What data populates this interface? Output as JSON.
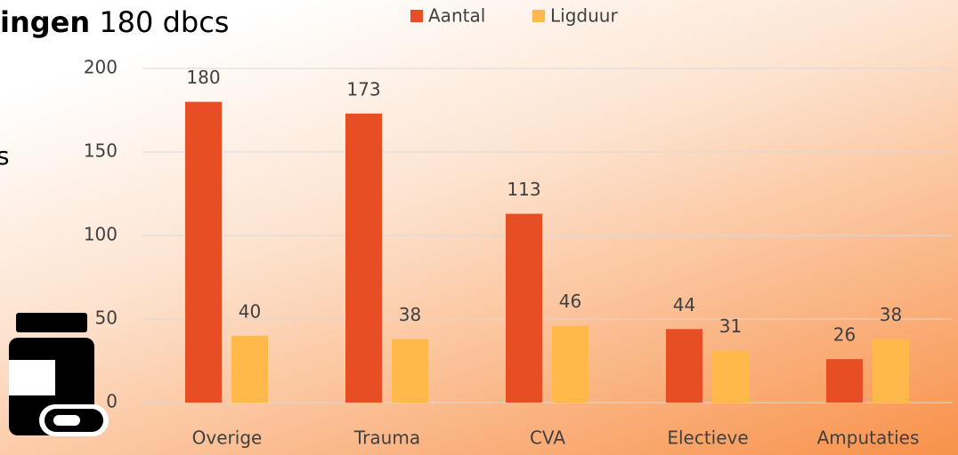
{
  "header": {
    "bold": "ingen",
    "rest": "180 dbcs"
  },
  "side_text": "s",
  "chart_data": {
    "type": "bar",
    "categories": [
      "Overige",
      "Trauma",
      "CVA",
      "Electieve",
      "Amputaties"
    ],
    "series": [
      {
        "name": "Aantal",
        "color": "#e84e23",
        "values": [
          180,
          173,
          113,
          44,
          26
        ]
      },
      {
        "name": "Ligduur",
        "color": "#ffb84a",
        "values": [
          40,
          38,
          46,
          31,
          38
        ]
      }
    ],
    "ylim": [
      0,
      200
    ],
    "yticks": [
      0,
      50,
      100,
      150,
      200
    ],
    "grid": true,
    "legend": "top"
  }
}
